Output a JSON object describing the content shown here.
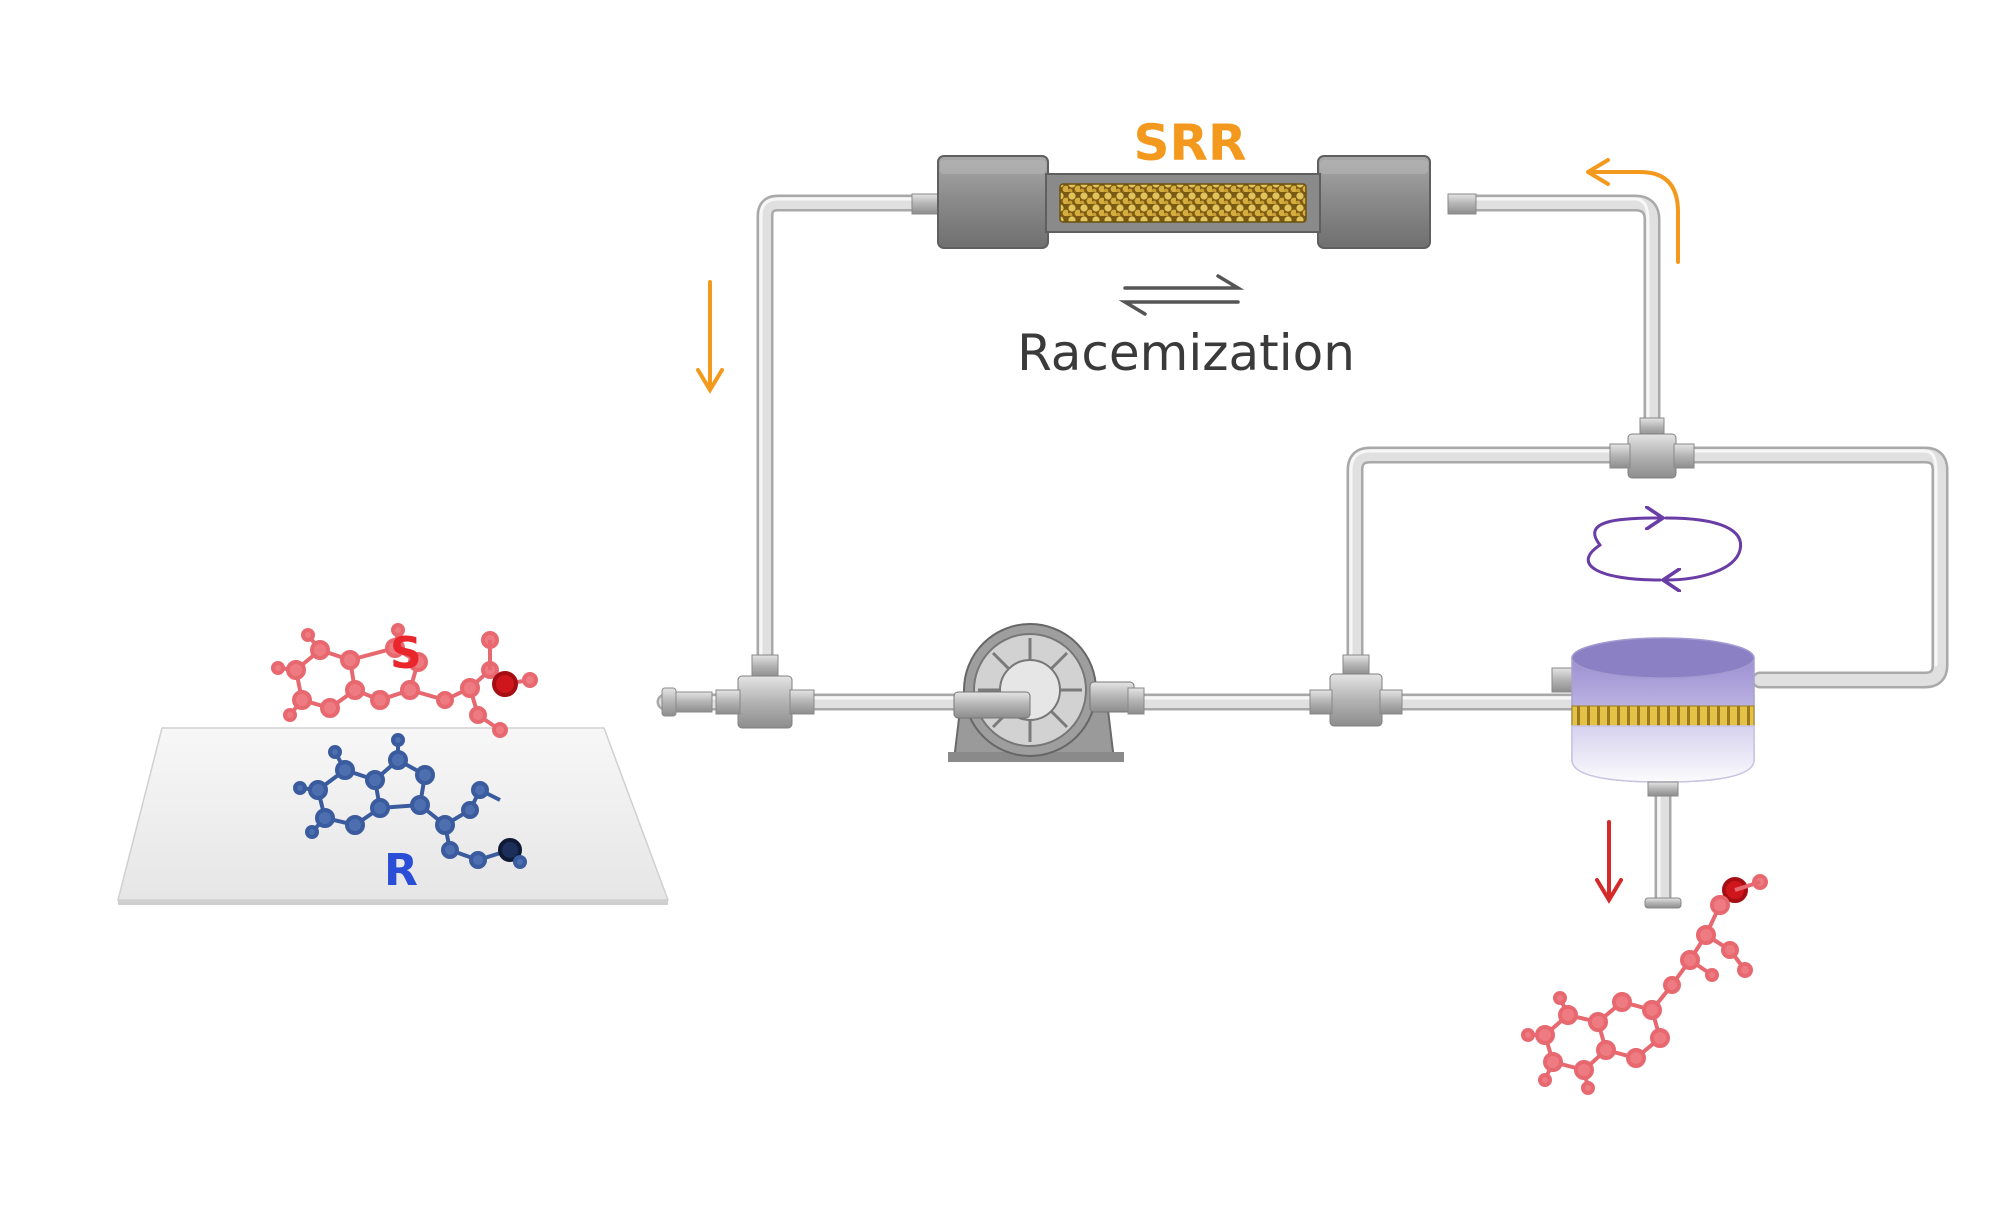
{
  "labels": {
    "srr": "SRR",
    "racemization": "Racemization",
    "s_enantiomer": "S",
    "r_enantiomer": "R"
  },
  "colors": {
    "flow_arrow": "#f39a1e",
    "product_arrow": "#d42a2a",
    "rotation_arrow": "#6a3ca6",
    "s_molecule": "#ef6f75",
    "r_molecule": "#3c5c9c",
    "tubing": "#dcdcdc",
    "reactor_body": "#b8aee0",
    "reactor_band": "#d8b63a",
    "column_packing": "#c9a24a"
  },
  "components": [
    "SRR column",
    "pump",
    "rotating reactor",
    "tubing loop",
    "T-junctions"
  ]
}
